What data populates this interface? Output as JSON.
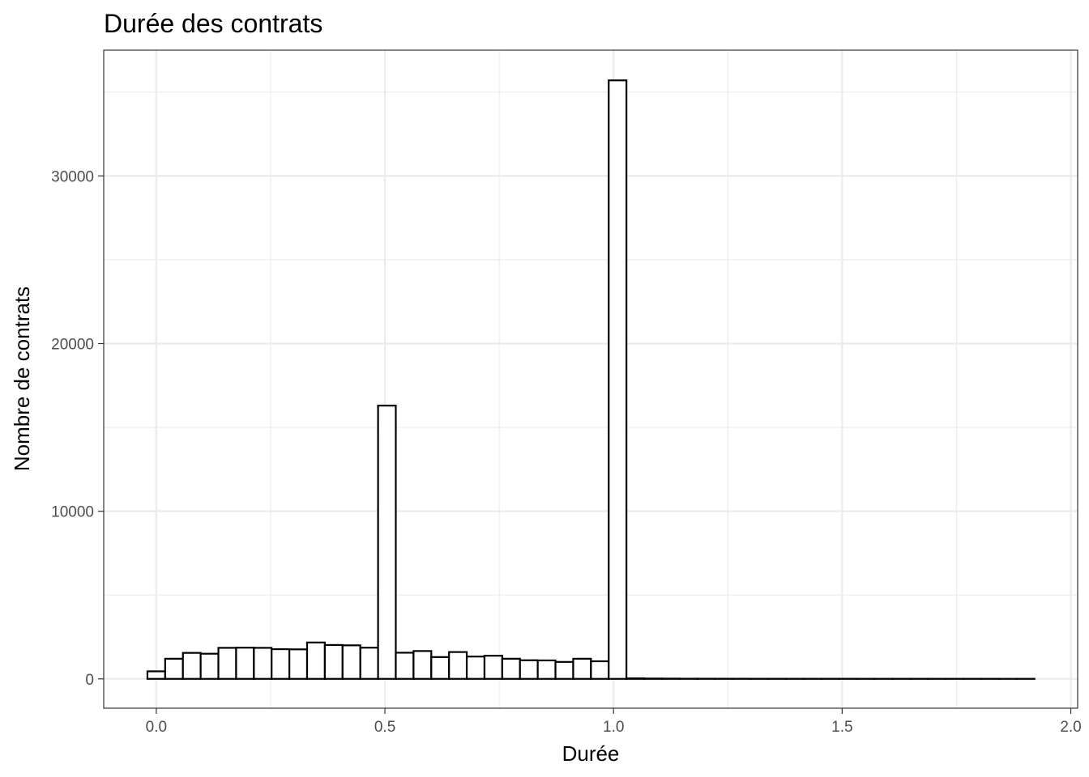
{
  "chart_data": {
    "type": "bar",
    "title": "Durée des contrats",
    "xlabel": "Durée",
    "ylabel": "Nombre de contrats",
    "xlim": [
      -0.115,
      2.015
    ],
    "ylim": [
      -1750,
      37500
    ],
    "x_ticks": [
      0.0,
      0.5,
      1.0,
      1.5,
      2.0
    ],
    "x_tick_labels": [
      "0.0",
      "0.5",
      "1.0",
      "1.5",
      "2.0"
    ],
    "y_ticks": [
      0,
      10000,
      20000,
      30000
    ],
    "y_tick_labels": [
      "0",
      "10000",
      "20000",
      "30000"
    ],
    "grid": true,
    "bin_width": 0.0388,
    "bin_start": -0.0194,
    "values": [
      450,
      1200,
      1550,
      1500,
      1850,
      1860,
      1850,
      1770,
      1760,
      2170,
      2020,
      2000,
      1860,
      16300,
      1560,
      1660,
      1300,
      1600,
      1330,
      1380,
      1200,
      1110,
      1100,
      1010,
      1200,
      1050,
      35700,
      30,
      20,
      15,
      10,
      10,
      8,
      8,
      6,
      6,
      5,
      5,
      5,
      5,
      4,
      4,
      4,
      4,
      3,
      3,
      3,
      3,
      2,
      2
    ]
  }
}
